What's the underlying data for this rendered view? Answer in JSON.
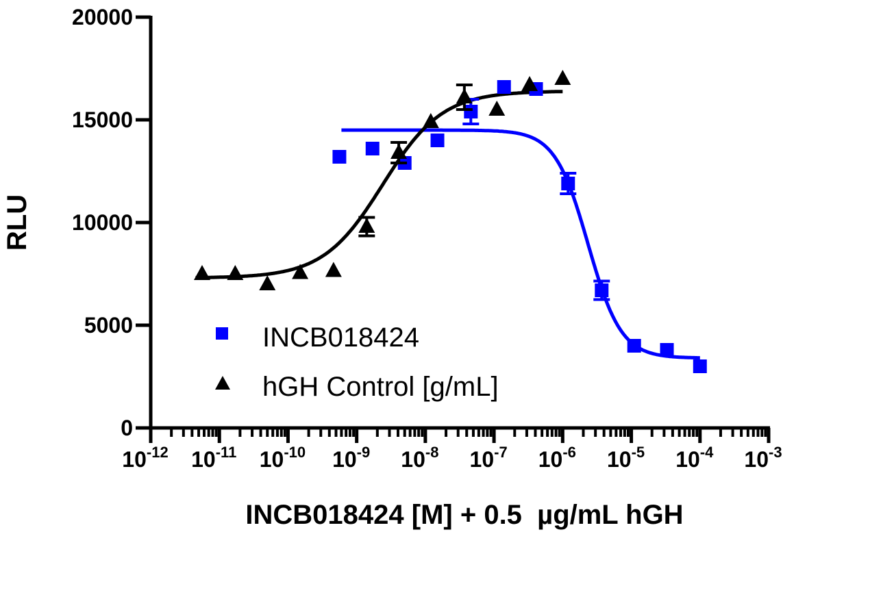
{
  "chart_data": {
    "type": "scatter",
    "title": "",
    "xlabel": "INCB018424 [M] + 0.5  µg/mL hGH",
    "ylabel": "RLU",
    "xscale": "log",
    "xlim": [
      1e-12,
      0.001
    ],
    "ylim": [
      0,
      20000
    ],
    "yticks": [
      0,
      5000,
      10000,
      15000,
      20000
    ],
    "xtick_exponents": [
      -12,
      -11,
      -10,
      -9,
      -8,
      -7,
      -6,
      -5,
      -4,
      -3
    ],
    "xtick_base": "10",
    "grid": false,
    "legend_position": "bottom-left",
    "series": [
      {
        "name": "INCB018424",
        "marker": "square",
        "color": "#0000ff",
        "x": [
          5.6e-10,
          1.7e-09,
          5e-09,
          1.5e-08,
          4.6e-08,
          1.4e-07,
          4.1e-07,
          1.2e-06,
          3.7e-06,
          1.1e-05,
          3.3e-05,
          0.0001
        ],
        "y": [
          13200,
          13600,
          12900,
          14000,
          15400,
          16600,
          16500,
          11900,
          6700,
          4000,
          3800,
          3000
        ],
        "err": [
          0,
          0,
          0,
          0,
          600,
          0,
          0,
          500,
          450,
          0,
          0,
          0
        ],
        "fit": {
          "model": "sigmoidal dose-response",
          "top": 14500,
          "bottom": 3400,
          "log_ec50": -5.63,
          "hill": -1.8,
          "x_range": [
            6e-10,
            0.0001
          ]
        }
      },
      {
        "name": "hGH Control [g/mL]",
        "marker": "triangle",
        "color": "#000000",
        "x": [
          5.6e-12,
          1.7e-11,
          5e-11,
          1.5e-10,
          4.6e-10,
          1.4e-09,
          4.1e-09,
          1.2e-08,
          3.7e-08,
          1.1e-07,
          3.3e-07,
          1e-06
        ],
        "y": [
          7500,
          7500,
          7000,
          7550,
          7650,
          9800,
          13400,
          14900,
          16100,
          15500,
          16700,
          17000
        ],
        "err": [
          0,
          0,
          0,
          0,
          0,
          450,
          500,
          0,
          600,
          0,
          0,
          0
        ],
        "fit": {
          "model": "sigmoidal dose-response",
          "top": 16400,
          "bottom": 7300,
          "log_ec50": -8.62,
          "hill": 1.0,
          "x_range": [
            4.5e-12,
            1e-06
          ]
        }
      }
    ]
  }
}
